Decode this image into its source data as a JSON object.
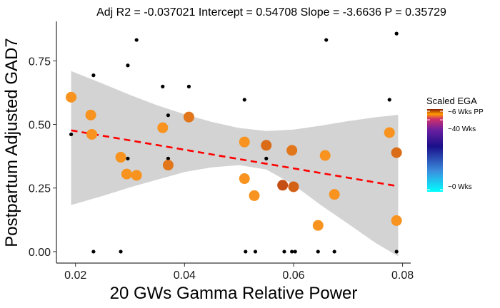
{
  "chart_data": {
    "type": "scatter",
    "title": "Adj R2 =  -0.037021 Intercept = 0.54708  Slope = -3.6636  P = 0.35729",
    "xlabel": "20 GWs Gamma Relative Power",
    "ylabel": "Postpartum Adjusted GAD7",
    "xlim": [
      0.0165,
      0.0815
    ],
    "ylim": [
      -0.045,
      0.905
    ],
    "x_ticks": [
      0.02,
      0.04,
      0.06,
      0.08
    ],
    "x_tick_labels": [
      "0.02",
      "0.04",
      "0.06",
      "0.08"
    ],
    "y_ticks": [
      0.0,
      0.25,
      0.5,
      0.75
    ],
    "y_tick_labels": [
      "0.00",
      "0.25",
      "0.50",
      "0.75"
    ],
    "grid": false,
    "legend_position": "right",
    "colors": {
      "regression_line": "#ff0000",
      "confidence_band": "#d3d3d3",
      "raw_points": "#000000"
    },
    "regression": {
      "x_range": [
        0.0192,
        0.0792
      ],
      "intercept": 0.54708,
      "slope": -3.6636
    },
    "confidence_band": {
      "x": [
        0.0192,
        0.025,
        0.03,
        0.035,
        0.04,
        0.045,
        0.05,
        0.055,
        0.06,
        0.065,
        0.07,
        0.075,
        0.0792
      ],
      "upper": [
        0.71,
        0.66,
        0.616,
        0.575,
        0.54,
        0.51,
        0.486,
        0.474,
        0.48,
        0.495,
        0.513,
        0.528,
        0.538
      ],
      "lower": [
        0.183,
        0.219,
        0.253,
        0.283,
        0.313,
        0.331,
        0.34,
        0.323,
        0.263,
        0.183,
        0.11,
        0.035,
        -0.018
      ]
    },
    "series": [
      {
        "points": [
          {
            "x": 0.0192,
            "y": 0.461
          },
          {
            "x": 0.0233,
            "y": 0.693
          },
          {
            "x": 0.0233,
            "y": 0.0
          },
          {
            "x": 0.0283,
            "y": 0.0
          },
          {
            "x": 0.0296,
            "y": 0.732
          },
          {
            "x": 0.0296,
            "y": 0.366
          },
          {
            "x": 0.0312,
            "y": 0.832
          },
          {
            "x": 0.036,
            "y": 0.649
          },
          {
            "x": 0.037,
            "y": 0.536
          },
          {
            "x": 0.037,
            "y": 0.366
          },
          {
            "x": 0.0408,
            "y": 0.649
          },
          {
            "x": 0.051,
            "y": 0.597
          },
          {
            "x": 0.0512,
            "y": 0.0
          },
          {
            "x": 0.053,
            "y": 0.0
          },
          {
            "x": 0.055,
            "y": 0.366
          },
          {
            "x": 0.0583,
            "y": 0.0
          },
          {
            "x": 0.0597,
            "y": 0.0
          },
          {
            "x": 0.0603,
            "y": 0.0
          },
          {
            "x": 0.0645,
            "y": 0.0
          },
          {
            "x": 0.066,
            "y": 0.832
          },
          {
            "x": 0.0675,
            "y": 0.0
          },
          {
            "x": 0.0776,
            "y": 0.597
          },
          {
            "x": 0.0789,
            "y": 0.857
          },
          {
            "x": 0.0789,
            "y": 0.0
          }
        ]
      },
      {
        "points": [
          {
            "x": 0.0192,
            "y": 0.607,
            "ega": 0.6
          },
          {
            "x": 0.0228,
            "y": 0.537,
            "ega": 0.6
          },
          {
            "x": 0.023,
            "y": 0.461,
            "ega": 0.6
          },
          {
            "x": 0.0283,
            "y": 0.371,
            "ega": 0.6
          },
          {
            "x": 0.0294,
            "y": 0.305,
            "ega": 0.6
          },
          {
            "x": 0.0312,
            "y": 0.3,
            "ega": 0.6
          },
          {
            "x": 0.036,
            "y": 0.487,
            "ega": 0.6
          },
          {
            "x": 0.037,
            "y": 0.34,
            "ega": 0.75
          },
          {
            "x": 0.0408,
            "y": 0.529,
            "ega": 0.75
          },
          {
            "x": 0.051,
            "y": 0.431,
            "ega": 0.6
          },
          {
            "x": 0.051,
            "y": 0.287,
            "ega": 0.6
          },
          {
            "x": 0.0528,
            "y": 0.22,
            "ega": 0.6
          },
          {
            "x": 0.055,
            "y": 0.418,
            "ega": 0.8
          },
          {
            "x": 0.058,
            "y": 0.261,
            "ega": 0.95
          },
          {
            "x": 0.0597,
            "y": 0.398,
            "ega": 0.75
          },
          {
            "x": 0.06,
            "y": 0.255,
            "ega": 0.85
          },
          {
            "x": 0.0645,
            "y": 0.103,
            "ega": 0.65
          },
          {
            "x": 0.0658,
            "y": 0.378,
            "ega": 0.6
          },
          {
            "x": 0.0675,
            "y": 0.225,
            "ega": 0.65
          },
          {
            "x": 0.0776,
            "y": 0.468,
            "ega": 0.6
          },
          {
            "x": 0.0789,
            "y": 0.389,
            "ega": 0.8
          },
          {
            "x": 0.0789,
            "y": 0.122,
            "ega": 0.6
          }
        ]
      }
    ],
    "legend": {
      "title": "Scaled EGA",
      "labels": [
        "~6 Wks PP",
        "~40 Wks",
        "~0 Wks"
      ],
      "label_values": [
        1.0,
        0.87,
        0.0
      ]
    }
  }
}
